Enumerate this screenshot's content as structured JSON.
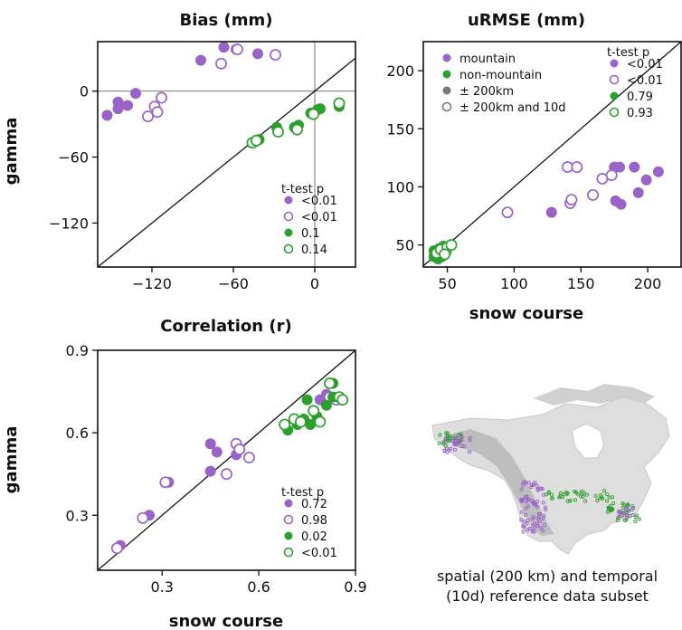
{
  "colors": {
    "mountain": "#9a63c7",
    "nonmountain": "#2ca02c",
    "gray": "#777777",
    "frame": "#111111"
  },
  "caption": [
    "spatial (200 km) and temporal",
    "(10d) reference data subset"
  ],
  "chart_data": [
    {
      "id": "bias",
      "type": "scatter",
      "title": "Bias (mm)",
      "xlabel": "",
      "ylabel": "gamma",
      "xlim": [
        -160,
        30
      ],
      "ylim": [
        -160,
        45
      ],
      "xticks": [
        -120,
        -60,
        0
      ],
      "yticks": [
        0,
        -60,
        -120
      ],
      "zero_lines": true,
      "legend_title": "t-test p",
      "legend": [
        {
          "label": "<0.01",
          "color": "mountain",
          "filled": true
        },
        {
          "label": "<0.01",
          "color": "mountain",
          "filled": false
        },
        {
          "label": "0.1",
          "color": "nonmountain",
          "filled": true
        },
        {
          "label": "0.14",
          "color": "nonmountain",
          "filled": false
        }
      ],
      "series": [
        {
          "color": "mountain",
          "filled": true,
          "points": [
            [
              -153,
              -22
            ],
            [
              -145,
              -10
            ],
            [
              -145,
              -16
            ],
            [
              -138,
              -13
            ],
            [
              -132,
              -2
            ],
            [
              -84,
              28
            ],
            [
              -67,
              40
            ],
            [
              -58,
              38
            ],
            [
              -42,
              34
            ]
          ]
        },
        {
          "color": "mountain",
          "filled": false,
          "points": [
            [
              -123,
              -23
            ],
            [
              -118,
              -14
            ],
            [
              -116,
              -19
            ],
            [
              -113,
              -6
            ],
            [
              -69,
              25
            ],
            [
              -57,
              38
            ],
            [
              -29,
              33
            ]
          ]
        },
        {
          "color": "nonmountain",
          "filled": true,
          "points": [
            [
              -44,
              -46
            ],
            [
              -41,
              -44
            ],
            [
              -28,
              -33
            ],
            [
              -15,
              -33
            ],
            [
              -12,
              -31
            ],
            [
              -3,
              -20
            ],
            [
              2,
              -17
            ],
            [
              4,
              -16
            ],
            [
              18,
              -14
            ]
          ]
        },
        {
          "color": "nonmountain",
          "filled": false,
          "points": [
            [
              -46,
              -47
            ],
            [
              -43,
              -45
            ],
            [
              -27,
              -37
            ],
            [
              -13,
              -35
            ],
            [
              -1,
              -21
            ],
            [
              18,
              -11
            ]
          ]
        }
      ]
    },
    {
      "id": "urmse",
      "type": "scatter",
      "title": "uRMSE (mm)",
      "xlabel": "snow course",
      "ylabel": "",
      "xlim": [
        32,
        225
      ],
      "ylim": [
        31,
        225
      ],
      "xticks": [
        50,
        100,
        150,
        200
      ],
      "yticks": [
        50,
        100,
        150,
        200
      ],
      "legend_left": [
        {
          "label": "mountain",
          "color": "mountain",
          "filled": true
        },
        {
          "label": "non-mountain",
          "color": "nonmountain",
          "filled": true
        },
        {
          "label": "± 200km",
          "color": "gray",
          "filled": true
        },
        {
          "label": "± 200km and 10d",
          "color": "gray",
          "filled": false
        }
      ],
      "legend_title": "t-test p",
      "legend": [
        {
          "label": "<0.01",
          "color": "mountain",
          "filled": true
        },
        {
          "label": "<0.01",
          "color": "mountain",
          "filled": false
        },
        {
          "label": "0.79",
          "color": "nonmountain",
          "filled": true
        },
        {
          "label": "0.93",
          "color": "nonmountain",
          "filled": false
        }
      ],
      "series": [
        {
          "color": "mountain",
          "filled": true,
          "points": [
            [
              128,
              78
            ],
            [
              175,
              117
            ],
            [
              179,
              117
            ],
            [
              190,
              117
            ],
            [
              208,
              113
            ],
            [
              199,
              106
            ],
            [
              193,
              95
            ],
            [
              176,
              88
            ],
            [
              180,
              85
            ]
          ]
        },
        {
          "color": "mountain",
          "filled": false,
          "points": [
            [
              95,
              78
            ],
            [
              140,
              117
            ],
            [
              147,
              117
            ],
            [
              166,
              107
            ],
            [
              173,
              110
            ],
            [
              142,
              86
            ],
            [
              143,
              89
            ],
            [
              159,
              93
            ]
          ]
        },
        {
          "color": "nonmountain",
          "filled": true,
          "points": [
            [
              40,
              45
            ],
            [
              44,
              47
            ],
            [
              47,
              49
            ],
            [
              40,
              40
            ],
            [
              44,
              42
            ],
            [
              49,
              44
            ],
            [
              46,
              40
            ],
            [
              43,
              38
            ]
          ]
        },
        {
          "color": "nonmountain",
          "filled": false,
          "points": [
            [
              42,
              43
            ],
            [
              45,
              46
            ],
            [
              50,
              48
            ],
            [
              53,
              50
            ],
            [
              48,
              42
            ]
          ]
        }
      ]
    },
    {
      "id": "correlation",
      "type": "scatter",
      "title": "Correlation (r)",
      "xlabel": "snow course",
      "ylabel": "gamma",
      "xlim": [
        0.1,
        0.9
      ],
      "ylim": [
        0.1,
        0.9
      ],
      "xticks": [
        0.3,
        0.6,
        0.9
      ],
      "yticks": [
        0.3,
        0.6,
        0.9
      ],
      "legend_title": "t-test p",
      "legend": [
        {
          "label": "0.72",
          "color": "mountain",
          "filled": true
        },
        {
          "label": "0.98",
          "color": "mountain",
          "filled": false
        },
        {
          "label": "0.02",
          "color": "nonmountain",
          "filled": true
        },
        {
          "label": "<0.01",
          "color": "nonmountain",
          "filled": false
        }
      ],
      "series": [
        {
          "color": "mountain",
          "filled": true,
          "points": [
            [
              0.17,
              0.19
            ],
            [
              0.26,
              0.3
            ],
            [
              0.32,
              0.42
            ],
            [
              0.45,
              0.46
            ],
            [
              0.45,
              0.56
            ],
            [
              0.47,
              0.53
            ],
            [
              0.53,
              0.52
            ],
            [
              0.79,
              0.72
            ],
            [
              0.81,
              0.74
            ]
          ]
        },
        {
          "color": "mountain",
          "filled": false,
          "points": [
            [
              0.16,
              0.18
            ],
            [
              0.24,
              0.29
            ],
            [
              0.31,
              0.42
            ],
            [
              0.5,
              0.45
            ],
            [
              0.53,
              0.56
            ],
            [
              0.54,
              0.54
            ],
            [
              0.57,
              0.51
            ],
            [
              0.82,
              0.73
            ],
            [
              0.84,
              0.72
            ]
          ]
        },
        {
          "color": "nonmountain",
          "filled": true,
          "points": [
            [
              0.69,
              0.61
            ],
            [
              0.72,
              0.63
            ],
            [
              0.74,
              0.65
            ],
            [
              0.75,
              0.72
            ],
            [
              0.76,
              0.63
            ],
            [
              0.78,
              0.66
            ],
            [
              0.81,
              0.7
            ],
            [
              0.83,
              0.73
            ],
            [
              0.83,
              0.78
            ]
          ]
        },
        {
          "color": "nonmountain",
          "filled": false,
          "points": [
            [
              0.68,
              0.63
            ],
            [
              0.71,
              0.65
            ],
            [
              0.73,
              0.64
            ],
            [
              0.77,
              0.68
            ],
            [
              0.79,
              0.64
            ],
            [
              0.82,
              0.78
            ],
            [
              0.85,
              0.73
            ],
            [
              0.86,
              0.72
            ]
          ]
        }
      ]
    }
  ]
}
